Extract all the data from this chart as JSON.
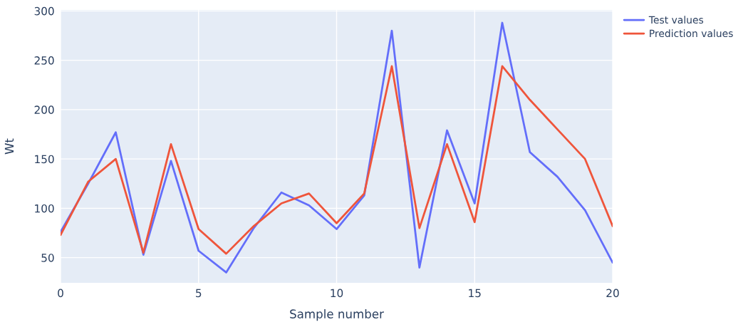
{
  "chart_data": {
    "type": "line",
    "xlabel": "Sample number",
    "ylabel": "Wt",
    "x": [
      0,
      1,
      2,
      3,
      4,
      5,
      6,
      7,
      8,
      9,
      10,
      11,
      12,
      13,
      14,
      15,
      16,
      17,
      18,
      19,
      20
    ],
    "series": [
      {
        "name": "Test values",
        "color": "#636efa",
        "values": [
          76,
          125,
          177,
          53,
          148,
          57,
          35,
          80,
          116,
          103,
          79,
          113,
          280,
          40,
          179,
          105,
          288,
          157,
          132,
          98,
          45
        ]
      },
      {
        "name": "Prediction values",
        "color": "#ef553b",
        "values": [
          73,
          127,
          150,
          55,
          165,
          79,
          54,
          82,
          105,
          115,
          85,
          115,
          244,
          80,
          165,
          86,
          244,
          210,
          180,
          150,
          82
        ]
      }
    ],
    "xlim": [
      0,
      20
    ],
    "xticks": [
      0,
      5,
      10,
      15,
      20
    ],
    "ylim": [
      24.5,
      301
    ],
    "yticks": [
      50,
      100,
      150,
      200,
      250,
      300
    ],
    "grid": true,
    "legend": "top right",
    "marker": "none",
    "line_style": "solid"
  }
}
